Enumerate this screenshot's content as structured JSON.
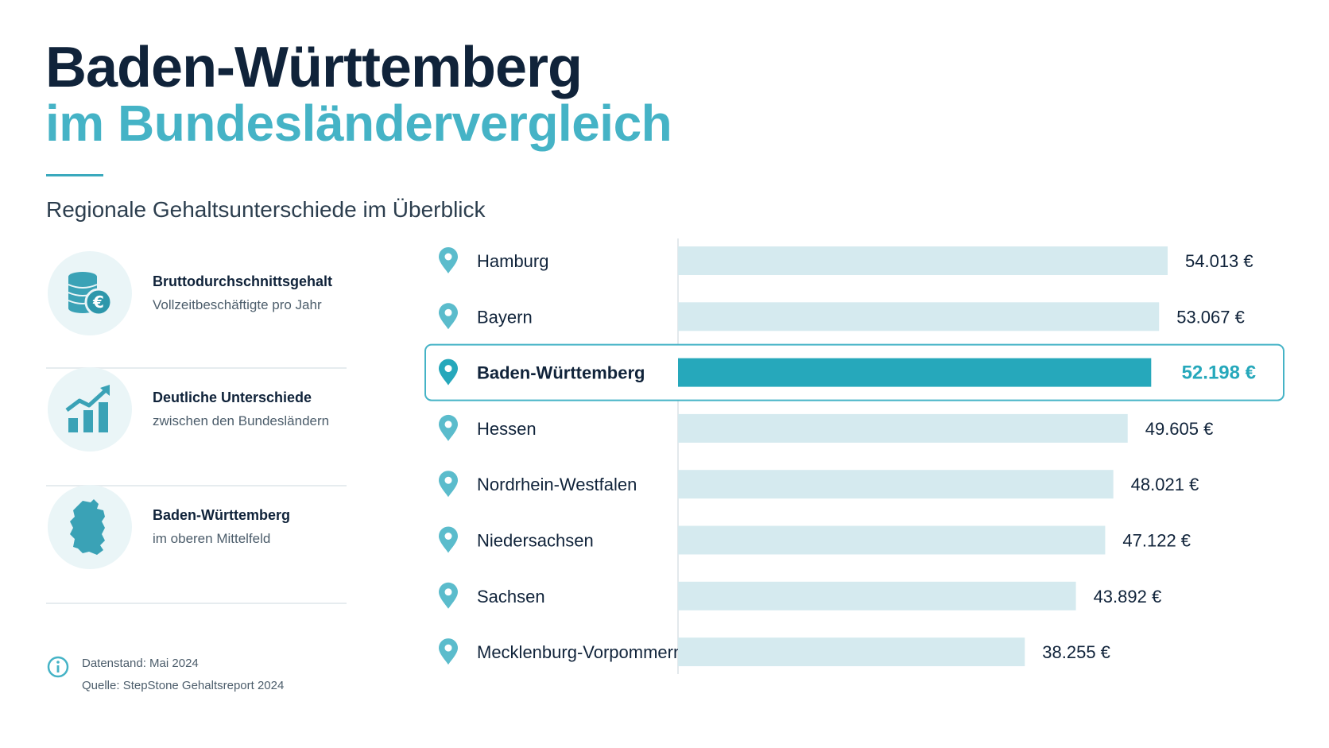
{
  "header": {
    "title_line1": "Baden-Württemberg",
    "title_line2": "im Bundesländervergleich",
    "subtitle": "Regionale Gehaltsunterschiede im Überblick"
  },
  "features": [
    {
      "icon": "coins-euro-icon",
      "title": "Bruttodurchschnittsgehalt",
      "subtitle": "Vollzeitbeschäftigte pro Jahr"
    },
    {
      "icon": "growth-chart-icon",
      "title": "Deutliche Unterschiede",
      "subtitle": "zwischen den Bundesländern"
    },
    {
      "icon": "germany-map-icon",
      "title": "Baden-Württemberg",
      "subtitle": "im oberen Mittelfeld"
    }
  ],
  "footer": {
    "icon": "info-icon",
    "line1": "Datenstand: Mai 2024",
    "line2": "Quelle: StepStone Gehaltsreport 2024"
  },
  "colors": {
    "title_dark": "#10233a",
    "accent": "#45b3c6",
    "bar_default": "#d5eaef",
    "bar_highlight": "#26a8bb",
    "pin": "#5bbccc"
  },
  "chart_data": {
    "type": "bar",
    "orientation": "horizontal",
    "categories": [
      "Hamburg",
      "Bayern",
      "Baden-Württemberg",
      "Hessen",
      "Nordrhein-Westfalen",
      "Niedersachsen",
      "Sachsen",
      "Mecklenburg-Vorpommern"
    ],
    "values": [
      54013,
      53067,
      52198,
      49605,
      48021,
      47122,
      43892,
      38255
    ],
    "value_labels": [
      "54.013 €",
      "53.067 €",
      "52.198 €",
      "49.605 €",
      "48.021 €",
      "47.122 €",
      "43.892 €",
      "38.255 €"
    ],
    "highlight": "Baden-Württemberg",
    "grid": false,
    "legend": "none"
  }
}
